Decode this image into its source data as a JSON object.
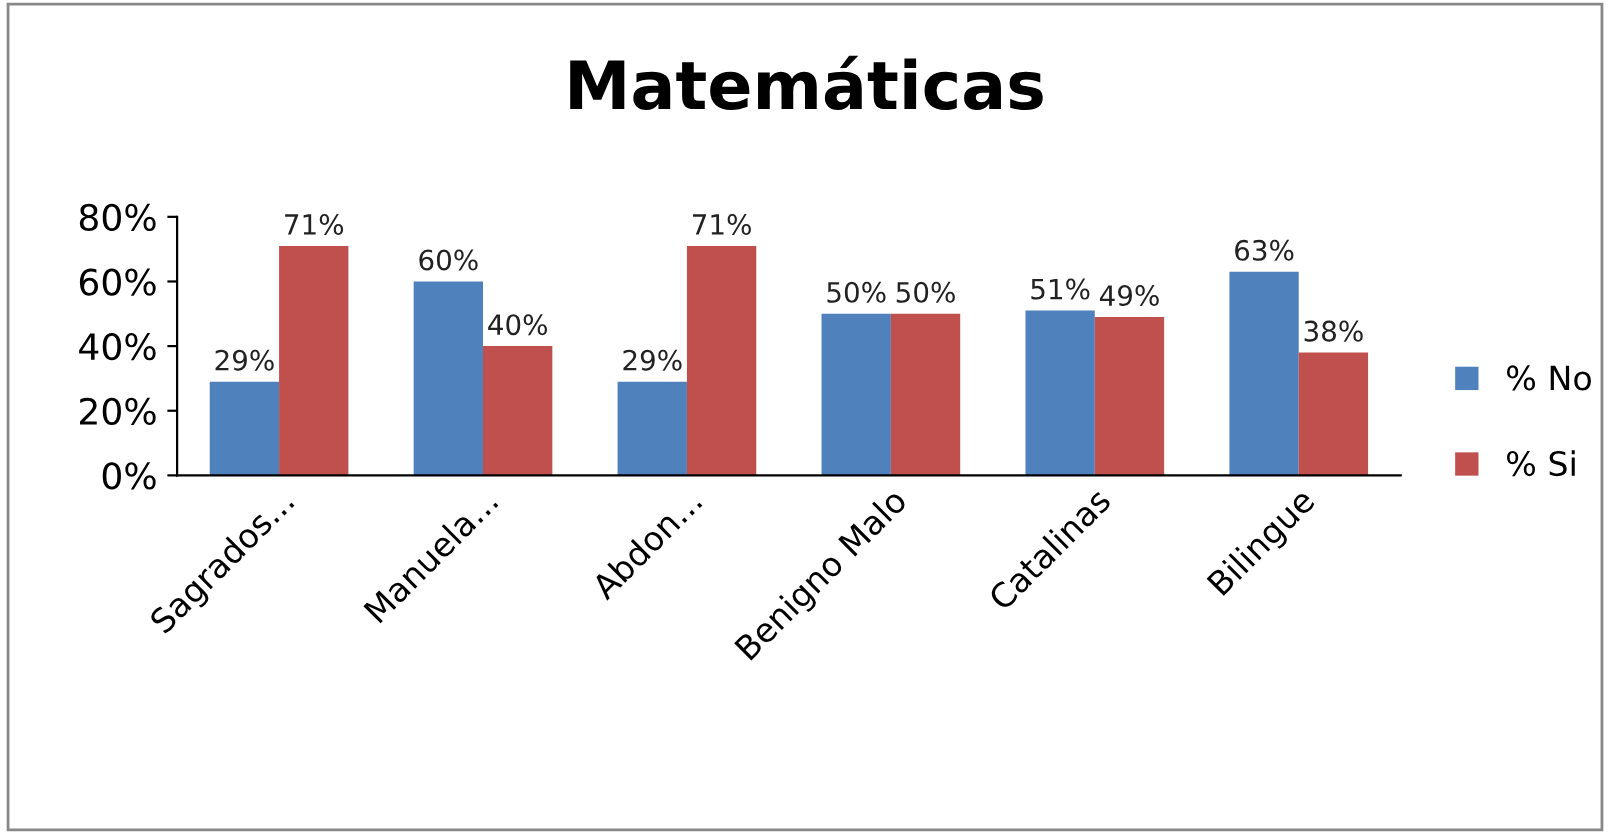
{
  "chart_data": {
    "type": "bar",
    "title": "Matemáticas",
    "categories": [
      "Sagrados...",
      "Manuela...",
      "Abdon...",
      "Benigno Malo",
      "Catalinas",
      "Bilingue"
    ],
    "series": [
      {
        "name": "% No",
        "color": "#4f81bd",
        "values": [
          29,
          60,
          29,
          50,
          51,
          63
        ],
        "value_labels": [
          "29%",
          "60%",
          "29%",
          "50%",
          "51%",
          "63%"
        ]
      },
      {
        "name": "% Si",
        "color": "#c0504d",
        "values": [
          71,
          40,
          71,
          50,
          49,
          38
        ],
        "value_labels": [
          "71%",
          "40%",
          "71%",
          "50%",
          "49%",
          "38%"
        ]
      }
    ],
    "ylim": [
      0,
      80
    ],
    "yticks": [
      {
        "value": 0,
        "label": "0%"
      },
      {
        "value": 20,
        "label": "20%"
      },
      {
        "value": 40,
        "label": "40%"
      },
      {
        "value": 60,
        "label": "60%"
      },
      {
        "value": 80,
        "label": "80%"
      }
    ],
    "grid": false,
    "legend": "right"
  }
}
